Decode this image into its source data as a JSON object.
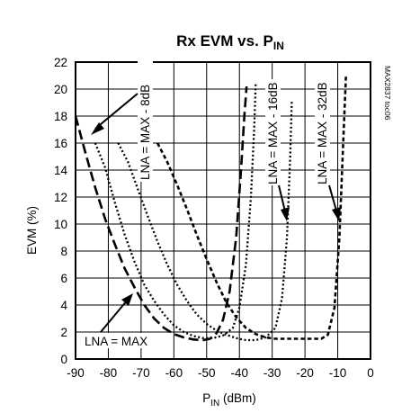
{
  "chart_data": {
    "type": "line",
    "title_main": "Rx EVM vs. P",
    "title_sub": "IN",
    "xlabel_main": "P",
    "xlabel_sub": "IN",
    "xlabel_unit": " (dBm)",
    "ylabel": "EVM (%)",
    "xlim": [
      -90,
      0
    ],
    "ylim": [
      0,
      22
    ],
    "xticks": [
      -90,
      -80,
      -70,
      -60,
      -50,
      -40,
      -30,
      -20,
      -10,
      0
    ],
    "yticks": [
      0,
      2,
      4,
      6,
      8,
      10,
      12,
      14,
      16,
      18,
      20,
      22
    ],
    "grid": true,
    "part_code": "MAX2837 toc06",
    "series": [
      {
        "name": "LNA = MAX",
        "dash": "long",
        "x": [
          -90,
          -87,
          -84,
          -81,
          -78,
          -75,
          -72,
          -69,
          -66,
          -63,
          -60,
          -57,
          -54,
          -51,
          -49,
          -47,
          -45,
          -43,
          -41,
          -39.5,
          -38.5,
          -37.8
        ],
        "y": [
          18,
          15.3,
          12.7,
          10.4,
          8.5,
          6.7,
          5.3,
          4.0,
          3.0,
          2.3,
          1.85,
          1.6,
          1.45,
          1.4,
          1.5,
          1.9,
          2.9,
          5.0,
          9.0,
          14.0,
          18.0,
          20.2
        ]
      },
      {
        "name": "LNA = MAX - 8dB",
        "dash": "dots",
        "x": [
          -84,
          -81,
          -78,
          -75,
          -72,
          -69,
          -66,
          -63,
          -60,
          -57,
          -54,
          -51,
          -48,
          -45,
          -42,
          -40,
          -38,
          -36.5,
          -35.5,
          -35
        ],
        "y": [
          16,
          14.2,
          11.6,
          9.2,
          7.2,
          5.5,
          4.3,
          3.3,
          2.5,
          2.0,
          1.7,
          1.55,
          1.55,
          1.75,
          2.3,
          3.8,
          7.0,
          12.0,
          17.0,
          20.5
        ]
      },
      {
        "name": "LNA = MAX - 16dB",
        "dash": "dots",
        "x": [
          -77,
          -74,
          -71,
          -68,
          -65,
          -62,
          -59,
          -56,
          -53,
          -50,
          -47,
          -44,
          -41,
          -38,
          -35,
          -32,
          -29,
          -27,
          -25.5,
          -24.5,
          -24
        ],
        "y": [
          16,
          14.6,
          12.6,
          10.6,
          8.7,
          7.0,
          5.5,
          4.3,
          3.3,
          2.6,
          2.1,
          1.8,
          1.55,
          1.4,
          1.4,
          1.6,
          2.3,
          4.5,
          9.0,
          15.0,
          19.2
        ]
      },
      {
        "name": "LNA = MAX - 32dB",
        "dash": "medium",
        "x": [
          -65,
          -62,
          -59,
          -56,
          -53,
          -50,
          -47,
          -44,
          -41,
          -38,
          -35,
          -32,
          -29,
          -26,
          -23,
          -20,
          -17,
          -15,
          -13,
          -11,
          -9.5,
          -8.5,
          -7.5
        ],
        "y": [
          16,
          14.6,
          12.9,
          11.1,
          9.2,
          7.4,
          5.7,
          4.2,
          3.1,
          2.3,
          1.85,
          1.6,
          1.5,
          1.5,
          1.5,
          1.5,
          1.5,
          1.5,
          1.8,
          3.8,
          9.0,
          15.0,
          21.0
        ]
      }
    ],
    "annotations": [
      {
        "text": "LNA = MAX - 8dB",
        "series": 1
      },
      {
        "text": "LNA = MAX - 16dB",
        "series": 2
      },
      {
        "text": "LNA = MAX - 32dB",
        "series": 3
      },
      {
        "text": "LNA = MAX",
        "series": 0
      }
    ]
  }
}
